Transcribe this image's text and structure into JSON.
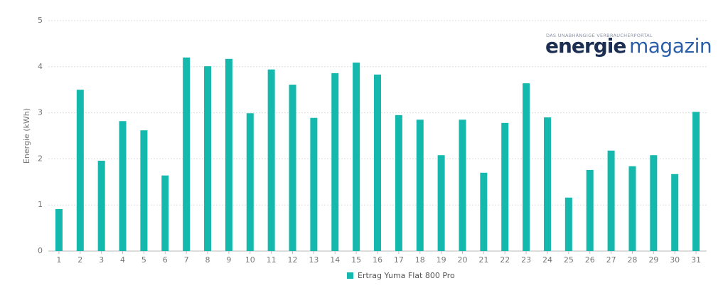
{
  "chart_data": {
    "type": "bar",
    "y_label": "Energie  (kWh)",
    "categories": [
      "1",
      "2",
      "3",
      "4",
      "5",
      "6",
      "7",
      "8",
      "9",
      "10",
      "11",
      "12",
      "13",
      "14",
      "15",
      "16",
      "17",
      "18",
      "19",
      "20",
      "21",
      "22",
      "23",
      "24",
      "25",
      "26",
      "27",
      "28",
      "29",
      "30",
      "31"
    ],
    "series": [
      {
        "name": "Ertrag Yuma Flat 800 Pro",
        "color": "#14b8ac",
        "values": [
          0.91,
          3.5,
          1.96,
          2.82,
          2.62,
          1.64,
          4.2,
          4.01,
          4.17,
          2.99,
          3.94,
          3.61,
          2.89,
          3.86,
          4.09,
          3.83,
          2.95,
          2.85,
          2.08,
          2.85,
          1.7,
          2.78,
          3.64,
          2.9,
          1.16,
          1.76,
          2.18,
          1.84,
          2.08,
          1.67,
          3.02
        ]
      }
    ],
    "ylim": [
      0,
      5
    ],
    "yticks": [
      0,
      1,
      2,
      3,
      4,
      5
    ],
    "grid": true
  },
  "logo": {
    "tagline": "DAS UNABHÄNGIGE VERBRAUCHERPORTAL",
    "word1": "energie",
    "word2": "magazin"
  }
}
